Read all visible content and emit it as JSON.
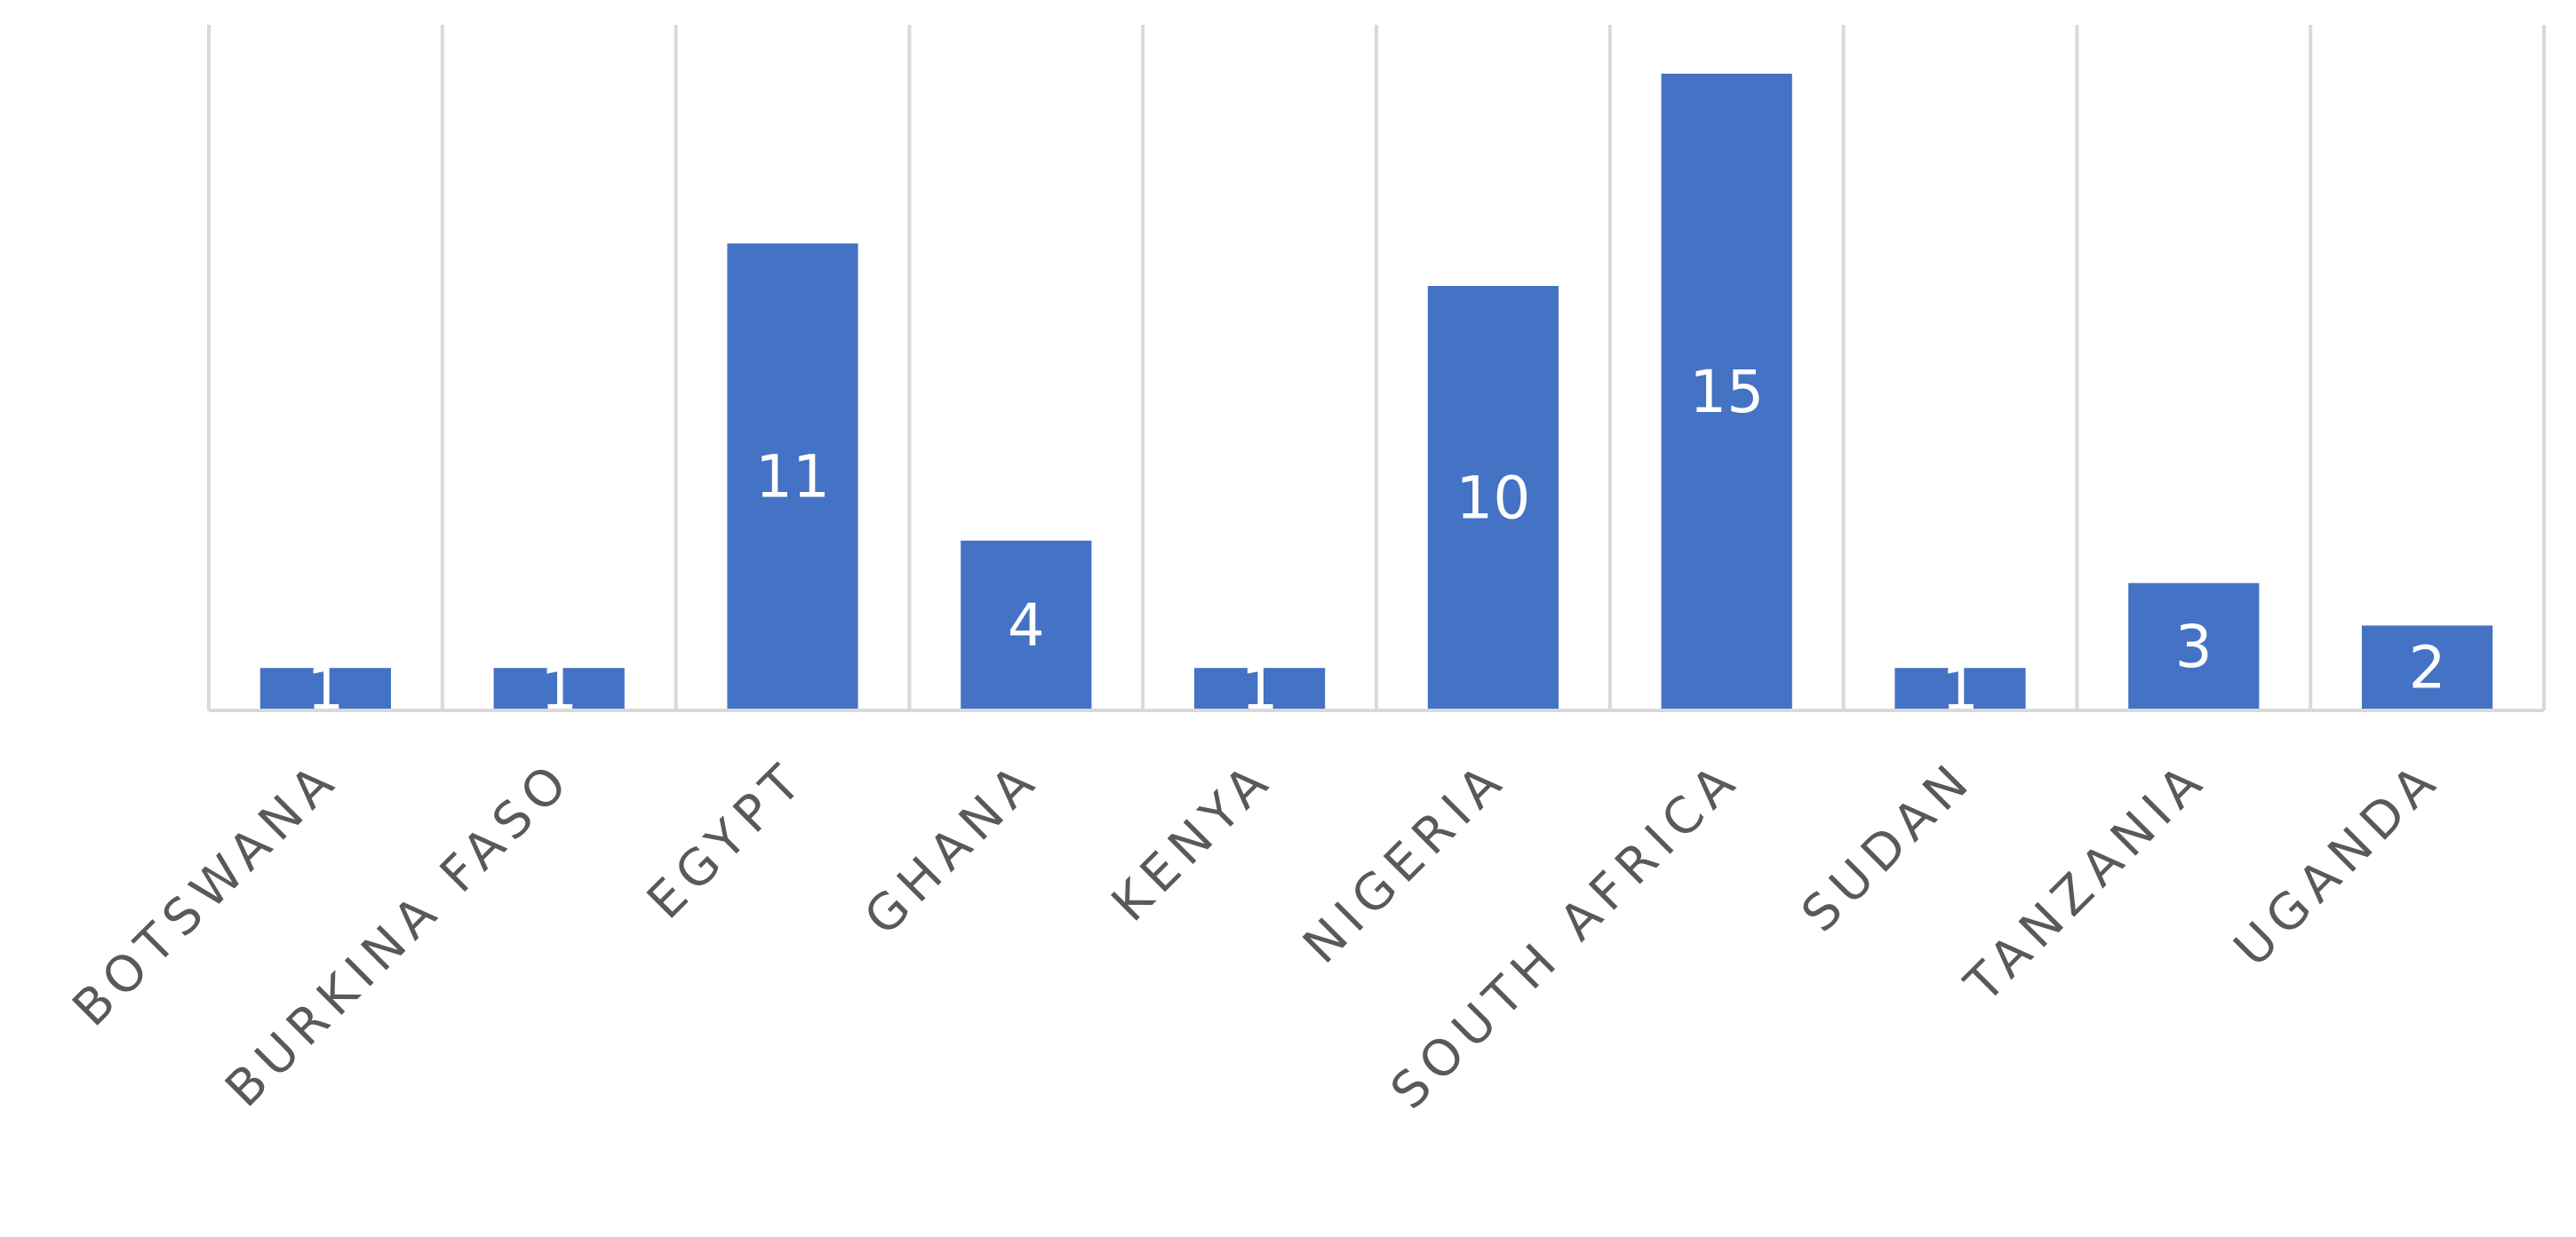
{
  "chart_data": {
    "type": "bar",
    "categories": [
      "BOTSWANA",
      "BURKINA FASO",
      "EGYPT",
      "GHANA",
      "KENYA",
      "NIGERIA",
      "SOUTH AFRICA",
      "SUDAN",
      "TANZANIA",
      "UGANDA"
    ],
    "values": [
      1,
      1,
      11,
      4,
      1,
      10,
      15,
      1,
      3,
      2
    ],
    "data_labels": [
      "1",
      "1",
      "11",
      "4",
      "1",
      "10",
      "15",
      "1",
      "3",
      "2"
    ],
    "title": "",
    "xlabel": "",
    "ylabel": "",
    "ylim": [
      0,
      16
    ],
    "grid": "vertical separators between categories",
    "legend": "none",
    "colors": {
      "bar": "#4472C4",
      "grid": "#D9D9D9",
      "data_label": "#FFFFFF",
      "category_label": "#595959"
    }
  }
}
